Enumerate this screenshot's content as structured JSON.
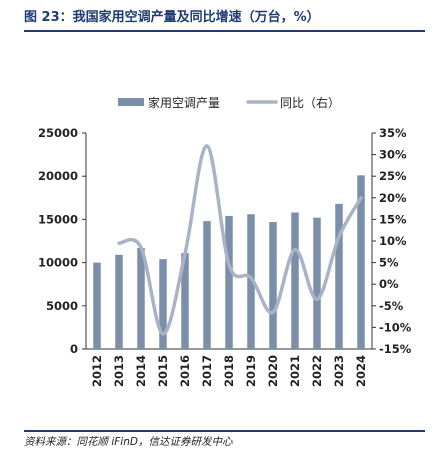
{
  "figure": {
    "title": "图 23：我国家用空调产量及同比增速（万台，%）",
    "source": "资料来源：同花顺 iFinD，信达证券研发中心"
  },
  "chart_data": {
    "type": "bar",
    "categories": [
      "2012",
      "2013",
      "2014",
      "2015",
      "2016",
      "2017",
      "2018",
      "2019",
      "2020",
      "2021",
      "2022",
      "2023",
      "2024"
    ],
    "series": [
      {
        "name": "家用空调产量",
        "type": "bar",
        "axis": "left",
        "color": "#7b8eaa",
        "values": [
          10000,
          10900,
          11700,
          10400,
          11100,
          14800,
          15400,
          15600,
          14700,
          15800,
          15200,
          16800,
          20100
        ]
      },
      {
        "name": "同比（右）",
        "type": "line",
        "axis": "right",
        "color": "#aab3c6",
        "values": [
          null,
          9.5,
          8.5,
          -11.5,
          7.0,
          32.0,
          4.5,
          1.5,
          -6.5,
          8.0,
          -3.5,
          11.0,
          20.0
        ]
      }
    ],
    "y_left": {
      "ylim": [
        0,
        25000
      ],
      "ticks": [
        "0",
        "5000",
        "10000",
        "15000",
        "20000",
        "25000"
      ]
    },
    "y_right": {
      "ylim": [
        -15,
        35
      ],
      "ticks": [
        "-15%",
        "-10%",
        "-5%",
        "0%",
        "5%",
        "10%",
        "15%",
        "20%",
        "25%",
        "30%",
        "35%"
      ]
    },
    "legend": "top-center",
    "grid": false
  }
}
